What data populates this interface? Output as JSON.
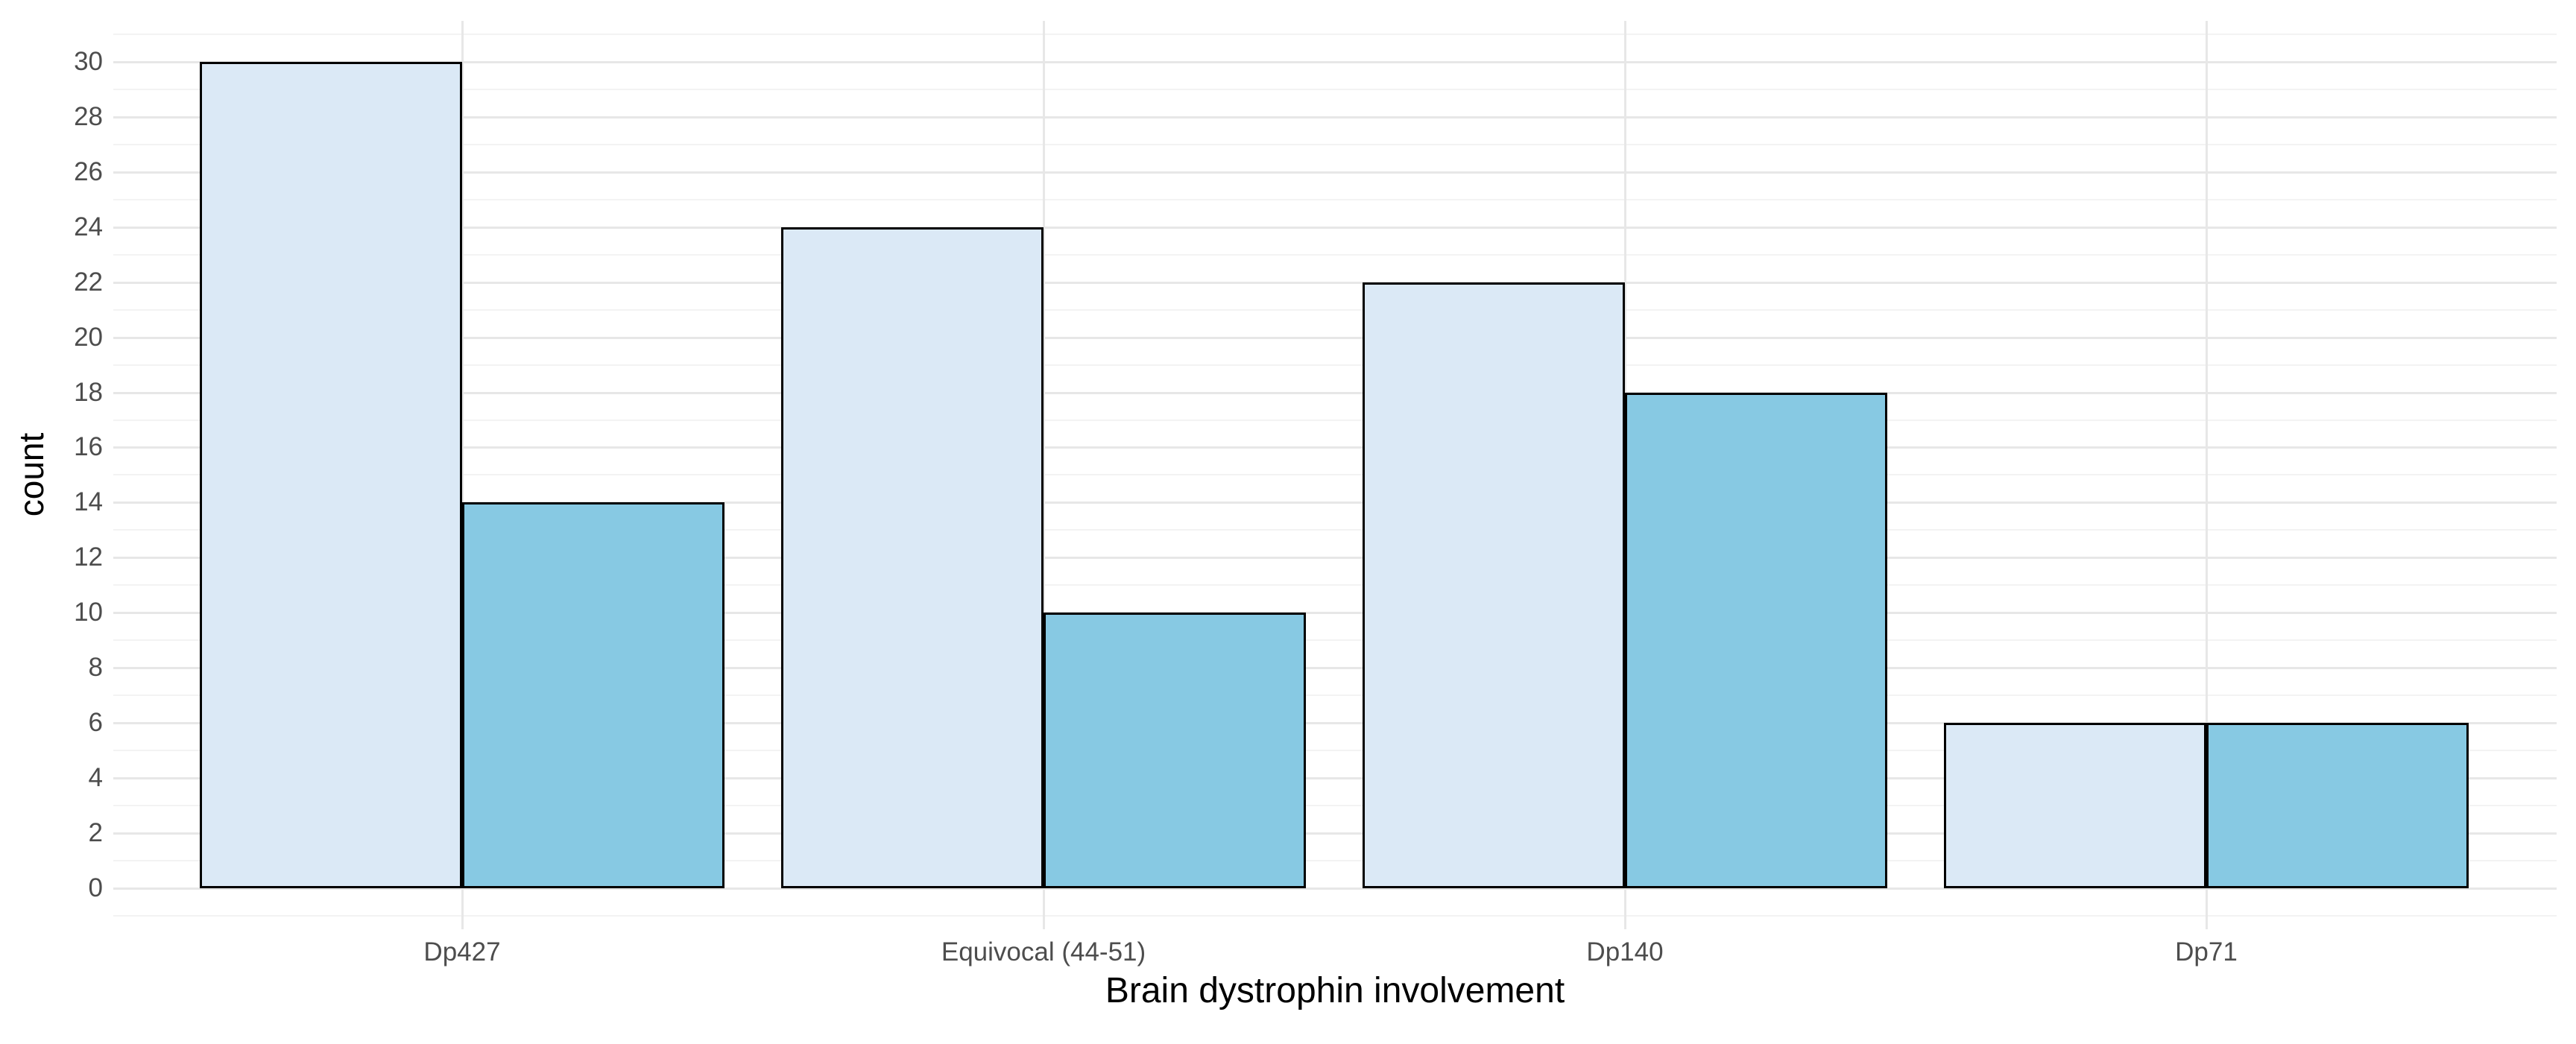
{
  "chart_data": {
    "type": "bar",
    "title": "",
    "xlabel": "Brain dystrophin involvement",
    "ylabel": "count",
    "categories": [
      "Dp427",
      "Equivocal (44-51)",
      "Dp140",
      "Dp71"
    ],
    "series": [
      {
        "name": "light-blue-bars",
        "color": "#dbe9f6",
        "values": [
          30,
          24,
          22,
          6
        ]
      },
      {
        "name": "sky-blue-bars",
        "color": "#87c9e3",
        "values": [
          14,
          10,
          18,
          6
        ]
      }
    ],
    "ylim": [
      0,
      30
    ],
    "yticks": [
      0,
      2,
      4,
      6,
      8,
      10,
      12,
      14,
      16,
      18,
      20,
      22,
      24,
      26,
      28,
      30
    ],
    "grid": {
      "horizontal_major": true,
      "horizontal_minor": true,
      "vertical_major_at_category_centers": true
    },
    "legend": "none",
    "bar_outline_color": "#000000",
    "grid_colors": {
      "major": "#e7e7e7",
      "minor": "#f3f3f3"
    },
    "text_colors": {
      "tick_labels": "#4d4d4d",
      "axis_titles": "#000000"
    },
    "background_color": "#ffffff"
  }
}
